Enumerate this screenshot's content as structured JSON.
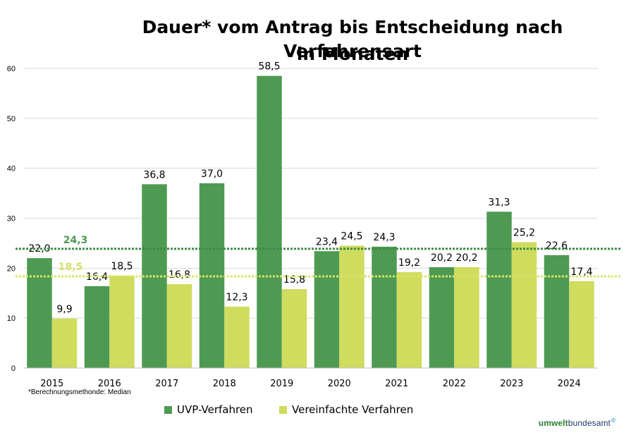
{
  "title_line1": "Dauer* vom Antrag bis Entscheidung nach Verfahrensart",
  "title_line2": "in Monaten",
  "footnote": "*Berechnungsmethonde: Median",
  "logo": {
    "part1": "umwelt",
    "part2": "bundesamt",
    "mark": "©"
  },
  "colors": {
    "uvp": "#4e9a53",
    "vereinfacht": "#cfdc5e",
    "uvp_line": "#3e8a44",
    "vereinfacht_line": "#d9e46a",
    "uvp_avg_text": "#4e9a53",
    "vereinfacht_avg_text": "#d6e06a",
    "grid": "#d9d9d9"
  },
  "chart_data": {
    "type": "bar",
    "categories": [
      "2015",
      "2016",
      "2017",
      "2018",
      "2019",
      "2020",
      "2021",
      "2022",
      "2023",
      "2024"
    ],
    "series": [
      {
        "name": "UVP-Verfahren",
        "values": [
          22.0,
          16.4,
          36.8,
          37.0,
          58.5,
          23.4,
          24.3,
          20.2,
          31.3,
          22.6
        ],
        "labels": [
          "22,0",
          "16,4",
          "36,8",
          "37,0",
          "58,5",
          "23,4",
          "24,3",
          "20,2",
          "31,3",
          "22,6"
        ]
      },
      {
        "name": "Vereinfachte Verfahren",
        "values": [
          9.9,
          18.5,
          16.8,
          12.3,
          15.8,
          24.5,
          19.2,
          20.2,
          25.2,
          17.4
        ],
        "labels": [
          "9,9",
          "18,5",
          "16,8",
          "12,3",
          "15,8",
          "24,5",
          "19,2",
          "20,2",
          "25,2",
          "17,4"
        ]
      }
    ],
    "reference_lines": [
      {
        "series": "UVP-Verfahren",
        "value": 24.3,
        "label": "24,3"
      },
      {
        "series": "Vereinfachte Verfahren",
        "value": 18.5,
        "label": "18,5"
      }
    ],
    "ylim": [
      0,
      60
    ],
    "yticks": [
      "0",
      "10",
      "20",
      "30",
      "40",
      "50",
      "60"
    ],
    "title": "Dauer* vom Antrag bis Entscheidung nach Verfahrensart in Monaten",
    "xlabel": "",
    "ylabel": "",
    "grid": true,
    "legend": "bottom"
  }
}
